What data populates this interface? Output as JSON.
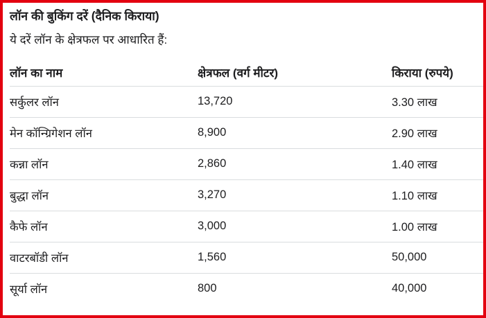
{
  "page": {
    "title": "लॉन की बुकिंग दरें (दैनिक किराया)",
    "subtitle": "ये दरें लॉन के क्षेत्रफल पर आधारित हैं:"
  },
  "table": {
    "columns": [
      "लॉन का नाम",
      "क्षेत्रफल (वर्ग मीटर)",
      "किराया (रुपये)"
    ],
    "rows": [
      {
        "name": "सर्कुलर लॉन",
        "area": "13,720",
        "rent": "3.30 लाख"
      },
      {
        "name": "मेन कॉन्ग्रिगेशन लॉन",
        "area": "8,900",
        "rent": "2.90 लाख"
      },
      {
        "name": "कन्ना लॉन",
        "area": "2,860",
        "rent": "1.40 लाख"
      },
      {
        "name": "बुद्धा लॉन",
        "area": "3,270",
        "rent": "1.10 लाख"
      },
      {
        "name": "कैफे लॉन",
        "area": "3,000",
        "rent": "1.00 लाख"
      },
      {
        "name": "वाटरबॉडी लॉन",
        "area": "1,560",
        "rent": "50,000"
      },
      {
        "name": "सूर्या लॉन",
        "area": "800",
        "rent": "40,000"
      }
    ]
  },
  "colors": {
    "border": "#e3000f",
    "text": "#1d1d1f",
    "divider": "#d9dcde",
    "background": "#ffffff"
  }
}
